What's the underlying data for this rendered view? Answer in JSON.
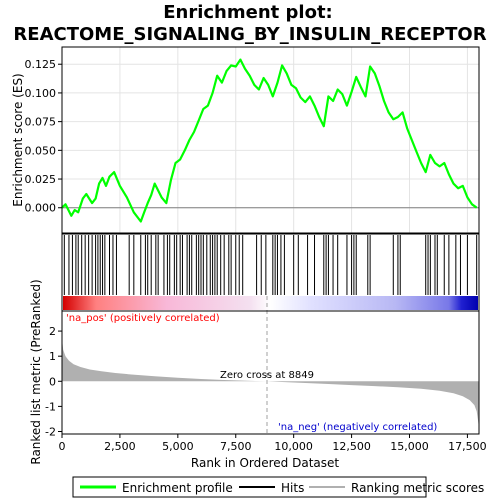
{
  "title": "Enrichment plot:",
  "subtitle": "REACTOME_SIGNALING_BY_INSULIN_RECEPTOR",
  "colors": {
    "es_line": "#00ff00",
    "hits": "#000000",
    "metric_fill": "#b0b0b0",
    "pos_label": "#ff0000",
    "neg_label": "#0000cc",
    "zero_line": "#a0a0a0"
  },
  "chart_data": [
    {
      "type": "line",
      "panel": "enrichment-profile",
      "ylabel": "Enrichment score (ES)",
      "xlim": [
        0,
        18000
      ],
      "ylim": [
        -0.022,
        0.14
      ],
      "yticks": [
        "0.000",
        "0.025",
        "0.050",
        "0.075",
        "0.100",
        "0.125"
      ],
      "ytick_values": [
        0,
        0.025,
        0.05,
        0.075,
        0.1,
        0.125
      ],
      "grid": true,
      "series": [
        {
          "name": "Enrichment profile",
          "x": [
            0,
            150,
            400,
            550,
            700,
            900,
            1050,
            1300,
            1450,
            1600,
            1750,
            1900,
            2050,
            2250,
            2500,
            2800,
            3100,
            3400,
            3550,
            3700,
            3850,
            4000,
            4300,
            4500,
            4700,
            4900,
            5100,
            5300,
            5500,
            5700,
            5900,
            6100,
            6300,
            6500,
            6700,
            6900,
            7100,
            7300,
            7500,
            7700,
            7900,
            8100,
            8300,
            8500,
            8700,
            8900,
            9100,
            9300,
            9500,
            9700,
            9900,
            10100,
            10300,
            10500,
            10700,
            10900,
            11100,
            11300,
            11500,
            11700,
            11900,
            12100,
            12300,
            12500,
            12700,
            12900,
            13100,
            13300,
            13500,
            13700,
            13900,
            14100,
            14300,
            14500,
            14700,
            14900,
            15100,
            15300,
            15500,
            15700,
            15900,
            16100,
            16300,
            16500,
            16700,
            16900,
            17100,
            17300,
            17500,
            17700,
            17900
          ],
          "values": [
            0.0,
            0.003,
            -0.007,
            -0.002,
            -0.004,
            0.008,
            0.012,
            0.004,
            0.008,
            0.021,
            0.026,
            0.019,
            0.027,
            0.031,
            0.019,
            0.009,
            -0.004,
            -0.012,
            -0.004,
            0.004,
            0.011,
            0.021,
            0.009,
            0.004,
            0.024,
            0.039,
            0.042,
            0.05,
            0.059,
            0.066,
            0.076,
            0.086,
            0.089,
            0.1,
            0.115,
            0.109,
            0.119,
            0.124,
            0.123,
            0.129,
            0.121,
            0.115,
            0.107,
            0.103,
            0.113,
            0.107,
            0.097,
            0.109,
            0.124,
            0.117,
            0.107,
            0.104,
            0.096,
            0.092,
            0.097,
            0.089,
            0.079,
            0.071,
            0.097,
            0.093,
            0.103,
            0.099,
            0.089,
            0.101,
            0.114,
            0.105,
            0.097,
            0.123,
            0.117,
            0.106,
            0.093,
            0.083,
            0.077,
            0.079,
            0.083,
            0.069,
            0.059,
            0.049,
            0.039,
            0.031,
            0.046,
            0.039,
            0.036,
            0.039,
            0.029,
            0.021,
            0.017,
            0.019,
            0.009,
            0.003,
            0.0
          ]
        }
      ]
    },
    {
      "type": "scatter",
      "panel": "hits",
      "series": [
        {
          "name": "Hits",
          "x": [
            100,
            300,
            450,
            600,
            700,
            850,
            1000,
            1150,
            1300,
            1450,
            1550,
            1650,
            1750,
            1850,
            2050,
            2200,
            2350,
            2900,
            3100,
            3400,
            3600,
            3700,
            3850,
            4050,
            4150,
            4400,
            4550,
            4650,
            4850,
            4950,
            5100,
            5200,
            5400,
            5500,
            5600,
            5800,
            5900,
            6000,
            6100,
            6250,
            6400,
            6500,
            6600,
            6700,
            6850,
            7000,
            7200,
            7300,
            7500,
            7650,
            7800,
            8400,
            8600,
            8800,
            9100,
            9200,
            9300,
            9450,
            9600,
            10000,
            10200,
            10600,
            10900,
            11300,
            11400,
            11500,
            11700,
            11900,
            12300,
            12500,
            12600,
            12700,
            13200,
            13300,
            14300,
            14500,
            14600,
            15700,
            15800,
            15900,
            16100,
            16200,
            16500,
            16700,
            17000,
            17200,
            17500,
            17900
          ]
        }
      ]
    },
    {
      "type": "area",
      "panel": "ranked-metric",
      "xlabel": "Rank in Ordered Dataset",
      "ylabel": "Ranked list metric (PreRanked)",
      "xlim": [
        0,
        18000
      ],
      "ylim": [
        -2.1,
        2.8
      ],
      "xticks": [
        "0",
        "2,500",
        "5,000",
        "7,500",
        "10,000",
        "12,500",
        "15,000",
        "17,500"
      ],
      "xtick_values": [
        0,
        2500,
        5000,
        7500,
        10000,
        12500,
        15000,
        17500
      ],
      "yticks": [
        "-2",
        "-1",
        "0",
        "1",
        "2"
      ],
      "ytick_values": [
        -2,
        -1,
        0,
        1,
        2
      ],
      "series": [
        {
          "name": "Ranking metric scores",
          "x": [
            0,
            50,
            150,
            300,
            500,
            800,
            1200,
            1700,
            2300,
            3000,
            4000,
            5000,
            6000,
            7000,
            8000,
            8849,
            9500,
            10500,
            11500,
            12500,
            13500,
            14500,
            15500,
            16300,
            16900,
            17300,
            17600,
            17800,
            17900,
            17950,
            18000
          ],
          "values": [
            1.7,
            1.25,
            1.0,
            0.82,
            0.68,
            0.57,
            0.47,
            0.4,
            0.33,
            0.27,
            0.2,
            0.14,
            0.09,
            0.05,
            0.02,
            0.0,
            -0.03,
            -0.07,
            -0.11,
            -0.15,
            -0.19,
            -0.24,
            -0.3,
            -0.38,
            -0.48,
            -0.6,
            -0.75,
            -0.95,
            -1.2,
            -1.5,
            -1.85
          ]
        }
      ]
    }
  ],
  "labels": {
    "pos": "'na_pos' (positively correlated)",
    "neg": "'na_neg' (negatively correlated)",
    "zero_cross": "Zero cross at 8849",
    "zero_cross_rank": 8849
  },
  "legend": {
    "placement": "bottom",
    "items": [
      {
        "label": "Enrichment profile",
        "kind": "line",
        "color": "#00ff00"
      },
      {
        "label": "Hits",
        "kind": "line",
        "color": "#000000"
      },
      {
        "label": "Ranking metric scores",
        "kind": "line",
        "color": "#b0b0b0"
      }
    ]
  }
}
